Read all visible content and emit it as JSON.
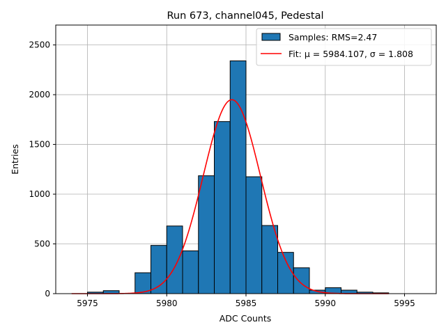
{
  "chart_data": {
    "type": "bar",
    "title": "Run 673, channel045, Pedestal",
    "xlabel": "ADC Counts",
    "ylabel": "Entries",
    "xlim": [
      5973,
      5997
    ],
    "ylim": [
      0,
      2700
    ],
    "xticks": [
      5975,
      5980,
      5985,
      5990,
      5995
    ],
    "yticks": [
      0,
      500,
      1000,
      1500,
      2000,
      2500
    ],
    "grid": true,
    "legend_position": "top-right",
    "histogram": {
      "name": "Samples: RMS=2.47",
      "bin_edges": [
        5974,
        5975,
        5976,
        5977,
        5978,
        5979,
        5980,
        5981,
        5982,
        5983,
        5984,
        5985,
        5986,
        5987,
        5988,
        5989,
        5990,
        5991,
        5992,
        5993,
        5994,
        5995,
        5996
      ],
      "counts": [
        0,
        15,
        30,
        0,
        210,
        485,
        680,
        430,
        1185,
        1730,
        2340,
        1175,
        685,
        415,
        260,
        35,
        60,
        35,
        15,
        8,
        0,
        0
      ],
      "color": "#1f77b4",
      "edge_color": "#000000"
    },
    "fit": {
      "name": "Fit: μ = 5984.107, σ = 1.808",
      "mu": 5984.107,
      "sigma": 1.808,
      "amplitude": 1950,
      "x_range": [
        5974,
        5994
      ],
      "color": "#ff0000"
    }
  }
}
